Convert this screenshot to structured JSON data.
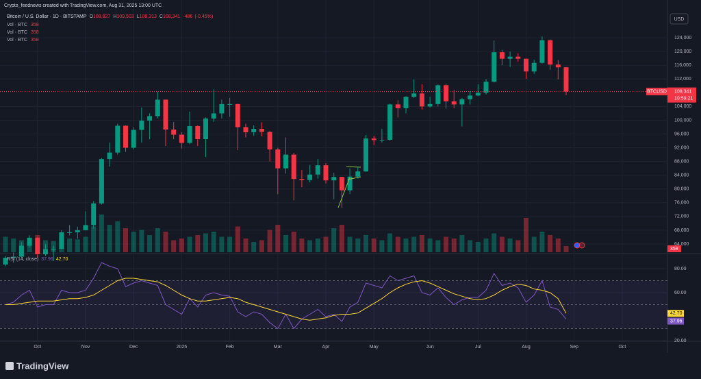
{
  "header": {
    "attribution": "Crypto_feednews created with TradingView.com, Aug 31, 2025 13:00 UTC",
    "symbol": "Bitcoin / U.S. Dollar · 1D · BITSTAMP",
    "ohlc": [
      {
        "letter": "O",
        "value": 108827,
        "label": "108,827"
      },
      {
        "letter": "H",
        "value": 109503,
        "label": "109,503"
      },
      {
        "letter": "L",
        "value": 108313,
        "label": "108,313"
      },
      {
        "letter": "C",
        "value": 108341,
        "label": "108,341"
      }
    ],
    "change": {
      "value": -486,
      "label": "-486"
    },
    "change_percent": {
      "value": -0.45,
      "label": "(-0.45%)"
    },
    "currency": "USD",
    "logo": "TradingView"
  },
  "chart_data": [
    {
      "type": "candlestick",
      "symbol_tag": "BTCUSD",
      "last_price": {
        "value": 108341,
        "label": "108,341"
      },
      "countdown": "10:59:21",
      "up_color": "#089981",
      "down_color": "#f23645",
      "grid": true,
      "categories": [
        null,
        null,
        null,
        null,
        "Oct",
        null,
        null,
        null,
        null,
        null,
        "Nov",
        null,
        null,
        null,
        null,
        null,
        "Dec",
        null,
        null,
        null,
        null,
        null,
        "2025",
        null,
        null,
        null,
        null,
        null,
        "Feb",
        null,
        null,
        null,
        null,
        null,
        "Mar",
        null,
        null,
        null,
        null,
        null,
        "Apr",
        null,
        null,
        null,
        null,
        null,
        "May",
        null,
        null,
        null,
        null,
        null,
        null,
        "Jun",
        null,
        null,
        null,
        null,
        null,
        "Jul",
        null,
        null,
        null,
        null,
        null,
        "Aug",
        null,
        null,
        null,
        null,
        null,
        "Sep",
        null,
        null,
        null,
        null,
        null,
        "Oct",
        null,
        null,
        null,
        null,
        null
      ],
      "open": [
        58000,
        60000,
        60300,
        63500,
        65800,
        61000,
        62500,
        62600,
        67400,
        67400,
        68000,
        69500,
        75800,
        88700,
        90600,
        98400,
        92000,
        97200,
        99900,
        101200,
        106000,
        97300,
        95800,
        93400,
        98300,
        94500,
        100500,
        102000,
        104700,
        104700,
        98000,
        96500,
        97500,
        96600,
        91500,
        86000,
        90000,
        82900,
        82600,
        84200,
        86900,
        82500,
        83500,
        79600,
        83600,
        85100,
        94700,
        94200,
        94300,
        104600,
        103500,
        106800,
        107800,
        104000,
        104700,
        110200,
        105500,
        104600,
        106100,
        107200,
        108000,
        111200,
        119800,
        117900,
        118500,
        117900,
        114200,
        116700,
        123300,
        116200,
        115400,
        null,
        null,
        null,
        null,
        null,
        null,
        null,
        null,
        null,
        null,
        null,
        null
      ],
      "high": [
        60500,
        61500,
        64500,
        66500,
        66000,
        64000,
        63500,
        68000,
        69500,
        69000,
        73500,
        76500,
        89000,
        93500,
        99000,
        98500,
        98000,
        103700,
        102000,
        108300,
        106000,
        99500,
        96500,
        102500,
        98500,
        100800,
        109000,
        106000,
        106500,
        104800,
        99000,
        98500,
        99400,
        96800,
        92000,
        95000,
        90500,
        85500,
        87000,
        88700,
        87500,
        84700,
        83500,
        86000,
        86300,
        95700,
        95500,
        97500,
        104800,
        105800,
        107000,
        111900,
        110500,
        106800,
        110400,
        110600,
        108900,
        106500,
        108500,
        110500,
        112000,
        123200,
        120500,
        120000,
        119500,
        118000,
        117600,
        124400,
        123500,
        117500,
        115500,
        null,
        null,
        null,
        null,
        null,
        null,
        null,
        null,
        null,
        null,
        null,
        null
      ],
      "low": [
        57500,
        58500,
        60000,
        63000,
        60000,
        60500,
        59000,
        62500,
        66500,
        65500,
        68000,
        68500,
        75500,
        86500,
        90000,
        90800,
        91500,
        93500,
        94500,
        100500,
        92500,
        94500,
        91800,
        93000,
        92500,
        89300,
        99500,
        100500,
        101000,
        91300,
        95000,
        95500,
        95300,
        88000,
        78500,
        84500,
        76700,
        80500,
        82000,
        83000,
        81600,
        77000,
        74500,
        78500,
        83000,
        85000,
        92800,
        93500,
        94000,
        100800,
        102000,
        106500,
        103100,
        103700,
        104000,
        103400,
        103500,
        98200,
        104600,
        107000,
        107500,
        111000,
        116000,
        115500,
        117000,
        112000,
        113500,
        116500,
        114700,
        111900,
        107300,
        null,
        null,
        null,
        null,
        null,
        null,
        null,
        null,
        null,
        null,
        null,
        null
      ],
      "close": [
        60000,
        60300,
        63500,
        65800,
        61000,
        62500,
        62600,
        67400,
        67400,
        68000,
        69500,
        75800,
        88700,
        90600,
        98400,
        92000,
        97200,
        99900,
        101200,
        106000,
        97300,
        95800,
        93400,
        98300,
        94500,
        100500,
        102000,
        104700,
        104700,
        98000,
        96500,
        97500,
        96600,
        91500,
        86000,
        90000,
        82900,
        82600,
        84200,
        86900,
        82500,
        83500,
        79600,
        83600,
        85100,
        94700,
        94200,
        94300,
        104600,
        103500,
        106800,
        107800,
        104000,
        104700,
        110200,
        105500,
        104600,
        106100,
        107200,
        108000,
        111200,
        119800,
        117900,
        118500,
        117900,
        114200,
        116700,
        123300,
        116200,
        115400,
        108341,
        null,
        null,
        null,
        null,
        null,
        null,
        null,
        null,
        null,
        null,
        null,
        null
      ],
      "volume": {
        "name": "Vol · BTC",
        "values": [
          900,
          800,
          700,
          850,
          1000,
          700,
          650,
          900,
          800,
          750,
          900,
          1500,
          2200,
          1600,
          1800,
          1400,
          1200,
          1300,
          1000,
          1400,
          1200,
          700,
          800,
          900,
          1000,
          1100,
          1200,
          900,
          900,
          1500,
          800,
          600,
          700,
          1300,
          1600,
          1000,
          1200,
          800,
          700,
          800,
          900,
          1400,
          1600,
          900,
          800,
          1000,
          800,
          700,
          1100,
          900,
          800,
          900,
          1000,
          800,
          700,
          900,
          800,
          1000,
          700,
          600,
          800,
          1100,
          900,
          800,
          700,
          2000,
          900,
          1200,
          1000,
          800,
          358,
          null,
          null,
          null,
          null,
          null,
          null,
          null,
          null,
          null,
          null,
          null,
          null
        ]
      },
      "ylim": [
        61600,
        132000
      ],
      "yticks": [
        {
          "value": 124000,
          "label": "124,000"
        },
        {
          "value": 120000,
          "label": "120,000"
        },
        {
          "value": 116000,
          "label": "116,000"
        },
        {
          "value": 112000,
          "label": "112,000"
        },
        {
          "value": 104000,
          "label": "104,000"
        },
        {
          "value": 100000,
          "label": "100,000"
        },
        {
          "value": 96000,
          "label": "96,000"
        },
        {
          "value": 92000,
          "label": "92,000"
        },
        {
          "value": 88000,
          "label": "88,000"
        },
        {
          "value": 84000,
          "label": "84,000"
        },
        {
          "value": 80000,
          "label": "80,000"
        },
        {
          "value": 76000,
          "label": "76,000"
        },
        {
          "value": 72000,
          "label": "72,000"
        },
        {
          "value": 68000,
          "label": "68,000"
        },
        {
          "value": 64000,
          "label": "64,000"
        }
      ]
    },
    {
      "type": "line",
      "title": "RSI (14, close)",
      "series": [
        {
          "color": "#7e57c2",
          "values": [
            50,
            52,
            58,
            62,
            48,
            50,
            50,
            62,
            60,
            60,
            62,
            72,
            85,
            82,
            80,
            65,
            68,
            70,
            68,
            66,
            50,
            46,
            42,
            55,
            48,
            58,
            60,
            58,
            57,
            44,
            40,
            44,
            42,
            35,
            30,
            42,
            30,
            38,
            42,
            46,
            40,
            42,
            36,
            48,
            52,
            68,
            66,
            64,
            74,
            70,
            72,
            74,
            60,
            58,
            64,
            56,
            50,
            54,
            56,
            56,
            62,
            76,
            66,
            68,
            64,
            52,
            58,
            70,
            48,
            46,
            37.96,
            null,
            null,
            null,
            null,
            null,
            null,
            null,
            null,
            null,
            null,
            null,
            null
          ]
        },
        {
          "color": "#fdd835",
          "current": {
            "value": 42.7,
            "label": "42.70"
          },
          "values": [
            50,
            50,
            51,
            52,
            53,
            53,
            53,
            54,
            55,
            55,
            56,
            58,
            62,
            66,
            70,
            72,
            72,
            71,
            70,
            69,
            66,
            62,
            58,
            55,
            53,
            53,
            54,
            55,
            56,
            55,
            52,
            50,
            48,
            46,
            44,
            42,
            40,
            38,
            37,
            38,
            39,
            41,
            42,
            42,
            43,
            47,
            51,
            55,
            60,
            64,
            67,
            69,
            70,
            68,
            65,
            62,
            59,
            57,
            55,
            54,
            55,
            58,
            62,
            65,
            67,
            66,
            63,
            62,
            60,
            55,
            42.7,
            null,
            null,
            null,
            null,
            null,
            null,
            null,
            null,
            null,
            null,
            null,
            null
          ]
        }
      ],
      "band": [
        30,
        70
      ],
      "midline": 50,
      "ylim": [
        20,
        91.4
      ],
      "yticks": [
        {
          "value": 80,
          "label": "80.00"
        },
        {
          "value": 60,
          "label": "60.00"
        },
        {
          "value": 20,
          "label": "20.00"
        }
      ]
    }
  ]
}
